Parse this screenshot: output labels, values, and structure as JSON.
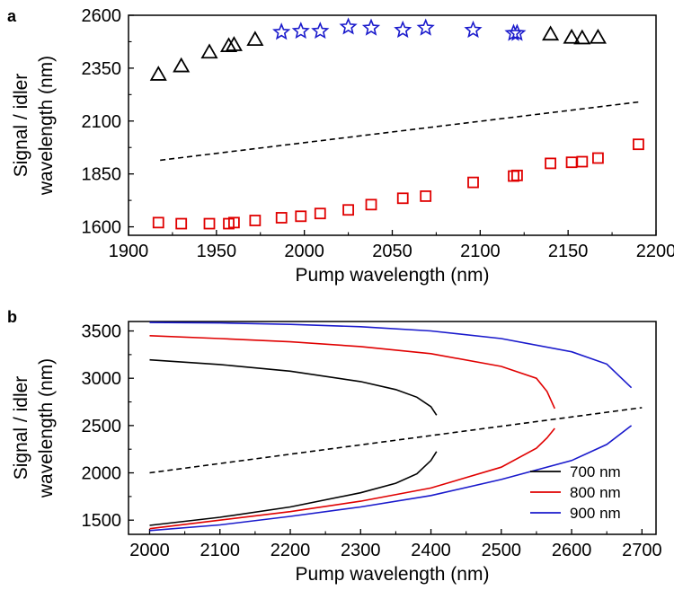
{
  "chart_data": [
    {
      "panel_label": "a",
      "type": "scatter",
      "xlabel": "Pump wavelength (nm)",
      "ylabel_lines": [
        "Signal / idler",
        "wavelength (nm)"
      ],
      "xlim": [
        1900,
        2200
      ],
      "ylim": [
        1560,
        2600
      ],
      "xticks": [
        1900,
        1950,
        2000,
        2050,
        2100,
        2150,
        2200
      ],
      "yticks": [
        1600,
        1850,
        2100,
        2350,
        2600
      ],
      "grid": false,
      "series": [
        {
          "marker": "triangle",
          "color": "#000000",
          "points": [
            [
              1917,
              2320
            ],
            [
              1930,
              2360
            ],
            [
              1946,
              2425
            ],
            [
              1957,
              2455
            ],
            [
              1960,
              2460
            ],
            [
              1972,
              2485
            ],
            [
              2140,
              2510
            ],
            [
              2152,
              2495
            ],
            [
              2158,
              2492
            ],
            [
              2167,
              2495
            ]
          ]
        },
        {
          "marker": "star",
          "color": "#1a1acc",
          "points": [
            [
              1987,
              2520
            ],
            [
              1998,
              2525
            ],
            [
              2009,
              2525
            ],
            [
              2025,
              2545
            ],
            [
              2038,
              2540
            ],
            [
              2056,
              2530
            ],
            [
              2069,
              2540
            ],
            [
              2096,
              2530
            ],
            [
              2119,
              2515
            ],
            [
              2121,
              2515
            ]
          ]
        },
        {
          "marker": "square",
          "color": "#e00000",
          "points": [
            [
              1917,
              1620
            ],
            [
              1930,
              1615
            ],
            [
              1946,
              1615
            ],
            [
              1957,
              1615
            ],
            [
              1960,
              1620
            ],
            [
              1972,
              1630
            ],
            [
              1987,
              1643
            ],
            [
              1998,
              1650
            ],
            [
              2009,
              1663
            ],
            [
              2025,
              1680
            ],
            [
              2038,
              1705
            ],
            [
              2056,
              1735
            ],
            [
              2069,
              1745
            ],
            [
              2096,
              1810
            ],
            [
              2119,
              1840
            ],
            [
              2121,
              1843
            ],
            [
              2140,
              1900
            ],
            [
              2152,
              1905
            ],
            [
              2158,
              1908
            ],
            [
              2167,
              1925
            ],
            [
              2190,
              1990
            ]
          ]
        },
        {
          "line": "dashed",
          "color": "#000000",
          "points": [
            [
              1918,
              1915
            ],
            [
              2190,
              2190
            ]
          ]
        }
      ]
    },
    {
      "panel_label": "b",
      "type": "line",
      "xlabel": "Pump wavelength (nm)",
      "ylabel_lines": [
        "Signal / idler",
        "wavelength (nm)"
      ],
      "xlim": [
        1970,
        2720
      ],
      "ylim": [
        1350,
        3600
      ],
      "xticks": [
        2000,
        2100,
        2200,
        2300,
        2400,
        2500,
        2600,
        2700
      ],
      "yticks": [
        1500,
        2000,
        2500,
        3000,
        3500
      ],
      "grid": false,
      "legend": {
        "position": "bottom-right",
        "entries": [
          "700 nm",
          "800 nm",
          "900 nm"
        ]
      },
      "series": [
        {
          "name": "700 nm",
          "color": "#000000",
          "upper": [
            [
              2000,
              3195
            ],
            [
              2100,
              3145
            ],
            [
              2200,
              3075
            ],
            [
              2300,
              2965
            ],
            [
              2350,
              2880
            ],
            [
              2380,
              2800
            ],
            [
              2400,
              2700
            ],
            [
              2408,
              2610
            ]
          ],
          "lower": [
            [
              2000,
              1445
            ],
            [
              2100,
              1530
            ],
            [
              2200,
              1640
            ],
            [
              2300,
              1790
            ],
            [
              2350,
              1890
            ],
            [
              2380,
              1990
            ],
            [
              2400,
              2130
            ],
            [
              2408,
              2225
            ]
          ]
        },
        {
          "name": "800 nm",
          "color": "#e00000",
          "upper": [
            [
              2000,
              3450
            ],
            [
              2100,
              3420
            ],
            [
              2200,
              3385
            ],
            [
              2300,
              3335
            ],
            [
              2400,
              3260
            ],
            [
              2500,
              3125
            ],
            [
              2550,
              3000
            ],
            [
              2565,
              2860
            ],
            [
              2576,
              2680
            ]
          ],
          "lower": [
            [
              2000,
              1410
            ],
            [
              2100,
              1500
            ],
            [
              2200,
              1590
            ],
            [
              2300,
              1700
            ],
            [
              2400,
              1840
            ],
            [
              2500,
              2060
            ],
            [
              2550,
              2260
            ],
            [
              2565,
              2370
            ],
            [
              2576,
              2470
            ]
          ]
        },
        {
          "name": "900 nm",
          "color": "#1a1acc",
          "upper": [
            [
              2000,
              3590
            ],
            [
              2100,
              3585
            ],
            [
              2200,
              3570
            ],
            [
              2300,
              3545
            ],
            [
              2400,
              3500
            ],
            [
              2500,
              3420
            ],
            [
              2600,
              3280
            ],
            [
              2650,
              3150
            ],
            [
              2685,
              2900
            ]
          ],
          "lower": [
            [
              2000,
              1390
            ],
            [
              2100,
              1450
            ],
            [
              2200,
              1540
            ],
            [
              2300,
              1640
            ],
            [
              2400,
              1760
            ],
            [
              2500,
              1930
            ],
            [
              2600,
              2130
            ],
            [
              2650,
              2300
            ],
            [
              2685,
              2500
            ]
          ]
        },
        {
          "line": "dashed",
          "color": "#000000",
          "points": [
            [
              2000,
              2000
            ],
            [
              2700,
              2690
            ]
          ]
        }
      ]
    }
  ]
}
